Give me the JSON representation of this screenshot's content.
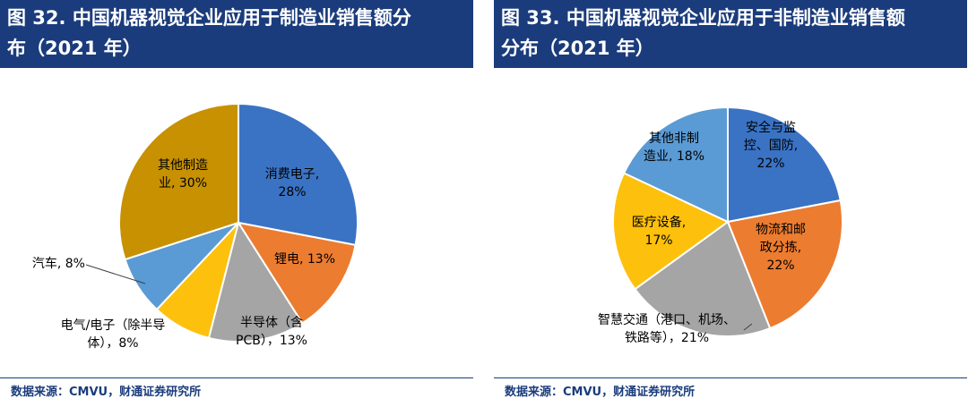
{
  "panels": [
    {
      "title": "图 32. 中国机器视觉企业应用于制造业销售额分布（2021 年）",
      "title_lines": [
        "图 32. 中国机器视觉企业应用于制造业销售额分",
        "布（2021 年）"
      ],
      "source": "数据来源：CMVU，财通证券研究所"
    },
    {
      "title": "图 33. 中国机器视觉企业应用于非制造业销售额分布（2021 年）",
      "title_lines": [
        "图 33. 中国机器视觉企业应用于非制造业销售额",
        "分布（2021 年）"
      ],
      "source": "数据来源：CMVU，财通证券研究所"
    }
  ],
  "chart_data": [
    {
      "type": "pie",
      "title": "中国机器视觉企业应用于制造业销售额分布（2021 年）",
      "start": "12 o'clock, clockwise",
      "slices": [
        {
          "label": "消费电子",
          "value": 28,
          "label_lines": [
            "消费电子,",
            "28%"
          ],
          "color": "#3a73c4"
        },
        {
          "label": "锂电",
          "value": 13,
          "label_lines": [
            "锂电, 13%"
          ],
          "color": "#ec7c30"
        },
        {
          "label": "半导体（含PCB）",
          "value": 13,
          "label_lines": [
            "半导体（含",
            "PCB），13%"
          ],
          "color": "#a5a5a5"
        },
        {
          "label": "电气/电子（除半导体）",
          "value": 8,
          "label_lines": [
            "电气/电子（除半导",
            "体），8%"
          ],
          "color": "#fdc00c"
        },
        {
          "label": "汽车",
          "value": 8,
          "label_lines": [
            "汽车, 8%"
          ],
          "color": "#5b9bd5"
        },
        {
          "label": "其他制造业",
          "value": 30,
          "label_lines": [
            "其他制造",
            "业, 30%"
          ],
          "color": "#c79102"
        }
      ]
    },
    {
      "type": "pie",
      "title": "中国机器视觉企业应用于非制造业销售额分布（2021 年）",
      "start": "12 o'clock, clockwise",
      "slices": [
        {
          "label": "安全与监控、国防",
          "value": 22,
          "label_lines": [
            "安全与监",
            "控、国防,",
            "22%"
          ],
          "color": "#3a73c4"
        },
        {
          "label": "物流和邮政分拣",
          "value": 22,
          "label_lines": [
            "物流和邮",
            "政分拣,",
            "22%"
          ],
          "color": "#ec7c30"
        },
        {
          "label": "智慧交通（港口、机场、铁路等）",
          "value": 21,
          "label_lines": [
            "智慧交通（港口、机场、",
            "铁路等），21%"
          ],
          "color": "#a5a5a5"
        },
        {
          "label": "医疗设备",
          "value": 17,
          "label_lines": [
            "医疗设备,",
            "17%"
          ],
          "color": "#fdc00c"
        },
        {
          "label": "其他非制造业",
          "value": 18,
          "label_lines": [
            "其他非制",
            "造业, 18%"
          ],
          "color": "#5b9bd5"
        }
      ]
    }
  ]
}
